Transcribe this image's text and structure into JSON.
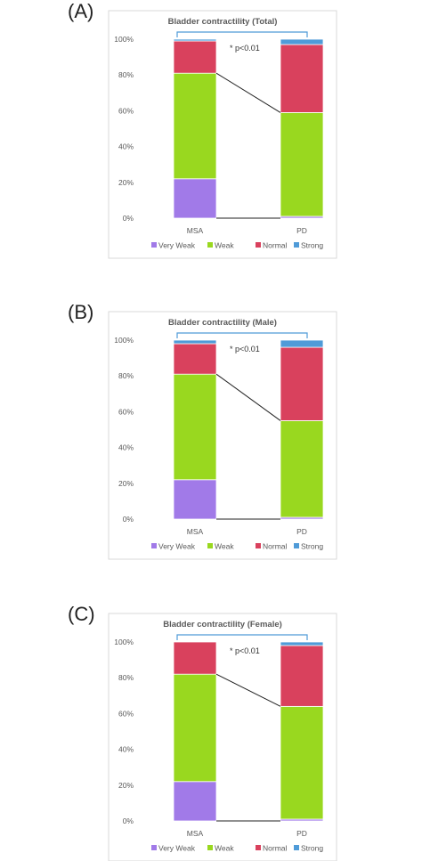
{
  "colors": {
    "Very Weak": "#a17ae8",
    "Weak": "#99d81f",
    "Normal": "#d9415d",
    "Strong": "#4f9bd8",
    "bracket": "#4f9bd8"
  },
  "legend": [
    "Very Weak",
    "Weak",
    "Normal",
    "Strong"
  ],
  "significance": "* p<0.01",
  "chart_data": [
    {
      "panel_label": "(A)",
      "type": "bar",
      "stacked": true,
      "title": "Bladder contractility (Total)",
      "categories": [
        "MSA",
        "PD"
      ],
      "yticks": [
        "0%",
        "20%",
        "40%",
        "60%",
        "80%",
        "100%"
      ],
      "ylim": [
        0,
        100
      ],
      "series": [
        {
          "name": "Very Weak",
          "values": [
            22,
            1
          ]
        },
        {
          "name": "Weak",
          "values": [
            59,
            58
          ]
        },
        {
          "name": "Normal",
          "values": [
            18,
            38
          ]
        },
        {
          "name": "Strong",
          "values": [
            1,
            3
          ]
        }
      ]
    },
    {
      "panel_label": "(B)",
      "type": "bar",
      "stacked": true,
      "title": "Bladder contractility (Male)",
      "categories": [
        "MSA",
        "PD"
      ],
      "yticks": [
        "0%",
        "20%",
        "40%",
        "60%",
        "80%",
        "100%"
      ],
      "ylim": [
        0,
        100
      ],
      "series": [
        {
          "name": "Very Weak",
          "values": [
            22,
            1
          ]
        },
        {
          "name": "Weak",
          "values": [
            59,
            54
          ]
        },
        {
          "name": "Normal",
          "values": [
            17,
            41
          ]
        },
        {
          "name": "Strong",
          "values": [
            2,
            4
          ]
        }
      ]
    },
    {
      "panel_label": "(C)",
      "type": "bar",
      "stacked": true,
      "title": "Bladder contractility (Female)",
      "categories": [
        "MSA",
        "PD"
      ],
      "yticks": [
        "0%",
        "20%",
        "40%",
        "60%",
        "80%",
        "100%"
      ],
      "ylim": [
        0,
        100
      ],
      "series": [
        {
          "name": "Very Weak",
          "values": [
            22,
            1
          ]
        },
        {
          "name": "Weak",
          "values": [
            60,
            63
          ]
        },
        {
          "name": "Normal",
          "values": [
            18,
            34
          ]
        },
        {
          "name": "Strong",
          "values": [
            0,
            2
          ]
        }
      ]
    }
  ]
}
